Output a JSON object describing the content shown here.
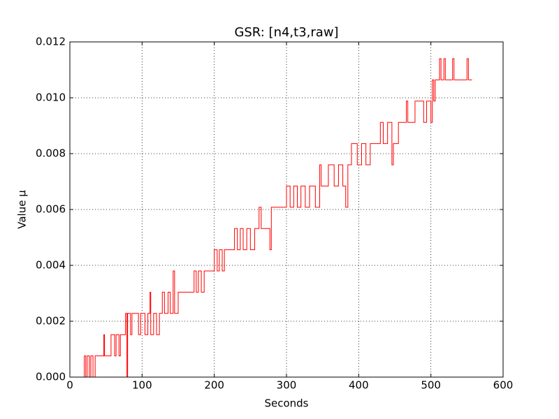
{
  "chart_data": {
    "type": "line",
    "title": "GSR: [n4,t3,raw]",
    "x_label": "Seconds",
    "y_label": "Value µ",
    "x": [
      0,
      20,
      20,
      22,
      22,
      24,
      24,
      27,
      27,
      29,
      29,
      32,
      32,
      35,
      35,
      47,
      47,
      48,
      48,
      57,
      57,
      62,
      62,
      64,
      64,
      68,
      68,
      70,
      70,
      77,
      77,
      79,
      79,
      80,
      80,
      84,
      84,
      86,
      86,
      95,
      95,
      98,
      98,
      104,
      104,
      108,
      108,
      111,
      111,
      112,
      112,
      116,
      116,
      120,
      120,
      124,
      124,
      128,
      128,
      131,
      131,
      136,
      136,
      139,
      139,
      143,
      143,
      145,
      145,
      150,
      150,
      172,
      172,
      175,
      175,
      178,
      178,
      182,
      182,
      186,
      186,
      200,
      200,
      204,
      204,
      207,
      207,
      211,
      211,
      214,
      214,
      228,
      228,
      232,
      232,
      236,
      236,
      240,
      240,
      245,
      245,
      250,
      250,
      256,
      256,
      262,
      262,
      265,
      265,
      277,
      277,
      279,
      279,
      300,
      300,
      305,
      305,
      310,
      310,
      315,
      315,
      320,
      320,
      326,
      326,
      332,
      332,
      340,
      340,
      346,
      346,
      348,
      348,
      358,
      358,
      366,
      366,
      372,
      372,
      378,
      378,
      382,
      382,
      385,
      385,
      390,
      390,
      398,
      398,
      404,
      404,
      410,
      410,
      416,
      416,
      430,
      430,
      434,
      434,
      440,
      440,
      446,
      446,
      448,
      448,
      455,
      455,
      466,
      466,
      468,
      468,
      478,
      478,
      490,
      490,
      494,
      494,
      500,
      500,
      502,
      502,
      504,
      504,
      506,
      506,
      512,
      512,
      514,
      514,
      518,
      518,
      520,
      520,
      530,
      530,
      532,
      532,
      550,
      550,
      552,
      552,
      557
    ],
    "series": [
      {
        "color": "#ff0000",
        "values": [
          0,
          0,
          0.00076,
          0.00076,
          0,
          0,
          0.00076,
          0.00076,
          0,
          0,
          0.00076,
          0.00076,
          0,
          0,
          0.00076,
          0.00076,
          0.00152,
          0.00152,
          0.00076,
          0.00076,
          0.00152,
          0.00152,
          0.00076,
          0.00076,
          0.00152,
          0.00152,
          0.00076,
          0.00076,
          0.00152,
          0.00152,
          0.00228,
          0.00228,
          0,
          0,
          0.00228,
          0.00228,
          0.00152,
          0.00152,
          0.00228,
          0.00228,
          0.00152,
          0.00152,
          0.00228,
          0.00228,
          0.00152,
          0.00152,
          0.00228,
          0.00228,
          0.00304,
          0.00304,
          0.00152,
          0.00152,
          0.00228,
          0.00228,
          0.00152,
          0.00152,
          0.00228,
          0.00228,
          0.00304,
          0.00304,
          0.00228,
          0.00228,
          0.00304,
          0.00304,
          0.00228,
          0.00228,
          0.0038,
          0.0038,
          0.00228,
          0.00228,
          0.00304,
          0.00304,
          0.0038,
          0.0038,
          0.00304,
          0.00304,
          0.0038,
          0.0038,
          0.00304,
          0.00304,
          0.0038,
          0.0038,
          0.00456,
          0.00456,
          0.0038,
          0.0038,
          0.00456,
          0.00456,
          0.0038,
          0.0038,
          0.00456,
          0.00456,
          0.00532,
          0.00532,
          0.00456,
          0.00456,
          0.00532,
          0.00532,
          0.00456,
          0.00456,
          0.00532,
          0.00532,
          0.00456,
          0.00456,
          0.00532,
          0.00532,
          0.00608,
          0.00608,
          0.00532,
          0.00532,
          0.00456,
          0.00456,
          0.00608,
          0.00608,
          0.00684,
          0.00684,
          0.00608,
          0.00608,
          0.00684,
          0.00684,
          0.00608,
          0.00608,
          0.00684,
          0.00684,
          0.00608,
          0.00608,
          0.00684,
          0.00684,
          0.00608,
          0.00608,
          0.0076,
          0.0076,
          0.00684,
          0.00684,
          0.0076,
          0.0076,
          0.00684,
          0.00684,
          0.0076,
          0.0076,
          0.00684,
          0.00684,
          0.00608,
          0.00608,
          0.0076,
          0.0076,
          0.00836,
          0.00836,
          0.0076,
          0.0076,
          0.00836,
          0.00836,
          0.0076,
          0.0076,
          0.00836,
          0.00836,
          0.00912,
          0.00912,
          0.00836,
          0.00836,
          0.00912,
          0.00912,
          0.0076,
          0.0076,
          0.00836,
          0.00836,
          0.00912,
          0.00912,
          0.00988,
          0.00988,
          0.00912,
          0.00912,
          0.00988,
          0.00988,
          0.00912,
          0.00912,
          0.00988,
          0.00988,
          0.00912,
          0.00912,
          0.01064,
          0.01064,
          0.00988,
          0.00988,
          0.01064,
          0.01064,
          0.0114,
          0.0114,
          0.01064,
          0.01064,
          0.0114,
          0.0114,
          0.01064,
          0.01064,
          0.0114,
          0.0114,
          0.01064,
          0.01064,
          0.0114,
          0.0114,
          0.01064,
          0.01064
        ]
      }
    ],
    "xlim": [
      0,
      600
    ],
    "xticks": [
      0,
      100,
      200,
      300,
      400,
      500,
      600
    ],
    "ylim": [
      0,
      0.012
    ],
    "yticks": [
      {
        "value": 0,
        "label": "0.000"
      },
      {
        "value": 0.002,
        "label": "0.002"
      },
      {
        "value": 0.004,
        "label": "0.004"
      },
      {
        "value": 0.006,
        "label": "0.006"
      },
      {
        "value": 0.008,
        "label": "0.008"
      },
      {
        "value": 0.01,
        "label": "0.010"
      },
      {
        "value": 0.012,
        "label": "0.012"
      }
    ],
    "grid": true
  }
}
